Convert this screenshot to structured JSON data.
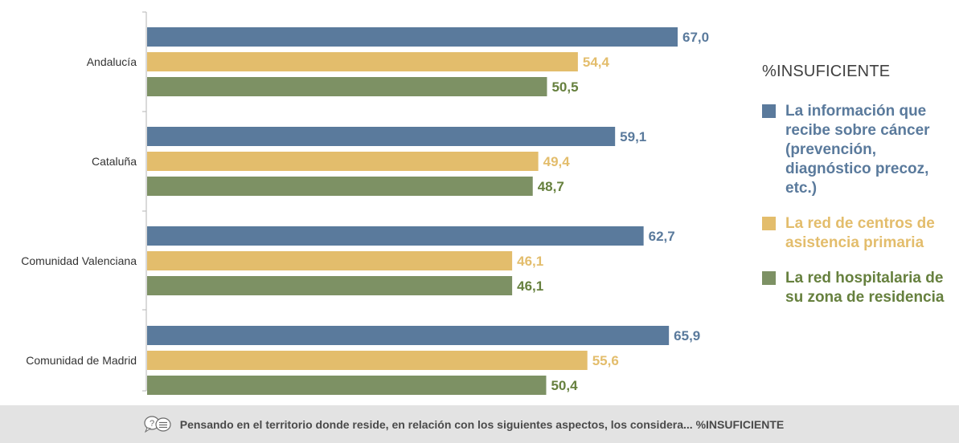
{
  "chart_data": {
    "type": "bar",
    "orientation": "horizontal",
    "categories": [
      "Andalucía",
      "Cataluña",
      "Comunidad Valenciana",
      "Comunidad de Madrid"
    ],
    "series": [
      {
        "name": "La información que recibe sobre cáncer (prevención, diagnóstico precoz, etc.)",
        "color": "#5a7a9c",
        "values": [
          67.0,
          59.1,
          62.7,
          65.9
        ],
        "labels": [
          "67,0",
          "59,1",
          "62,7",
          "65,9"
        ]
      },
      {
        "name": "La red de centros de asistencia primaria",
        "color": "#e3bd6c",
        "values": [
          54.4,
          49.4,
          46.1,
          55.6
        ],
        "labels": [
          "54,4",
          "49,4",
          "46,1",
          "55,6"
        ]
      },
      {
        "name": "La red hospitalaria de su zona de residencia",
        "color": "#7d9164",
        "values": [
          50.5,
          48.7,
          46.1,
          50.4
        ],
        "labels": [
          "50,5",
          "48,7",
          "46,1",
          "50,4"
        ]
      }
    ],
    "legend_title": "%INSUFICIENTE",
    "legend_position": "right",
    "xlim": [
      0,
      100
    ],
    "grid": false
  },
  "footer": {
    "icon": "question-speech-icon",
    "text": "Pensando en el territorio donde reside, en relación con los siguientes aspectos, los considera... %INSUFICIENTE"
  }
}
